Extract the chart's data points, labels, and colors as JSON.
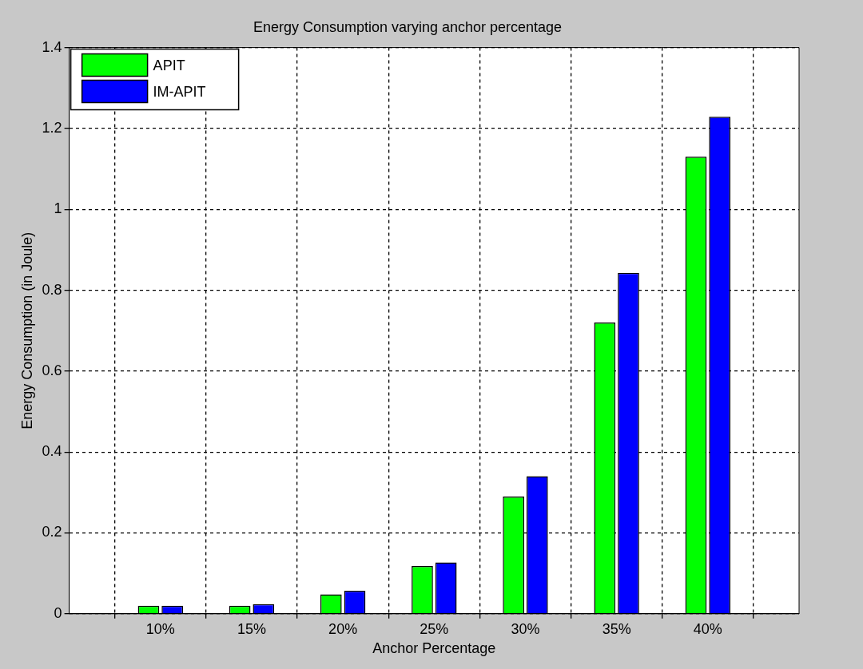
{
  "chart_data": {
    "type": "bar",
    "title": "Energy Consumption varying anchor percentage",
    "xlabel": "Anchor Percentage",
    "ylabel": "Energy Consumption (in Joule)",
    "categories": [
      "10%",
      "15%",
      "20%",
      "25%",
      "30%",
      "35%",
      "40%"
    ],
    "series": [
      {
        "name": "APIT",
        "color": "#00ff00",
        "values": [
          0.02,
          0.02,
          0.048,
          0.118,
          0.29,
          0.72,
          1.13
        ]
      },
      {
        "name": "IM-APIT",
        "color": "#0000ff",
        "values": [
          0.02,
          0.024,
          0.057,
          0.127,
          0.34,
          0.843,
          1.229
        ]
      }
    ],
    "ylim": [
      0,
      1.4
    ],
    "yticks": [
      0,
      0.2,
      0.4,
      0.6,
      0.8,
      1,
      1.2,
      1.4
    ],
    "grid": true,
    "legend": "top left"
  }
}
